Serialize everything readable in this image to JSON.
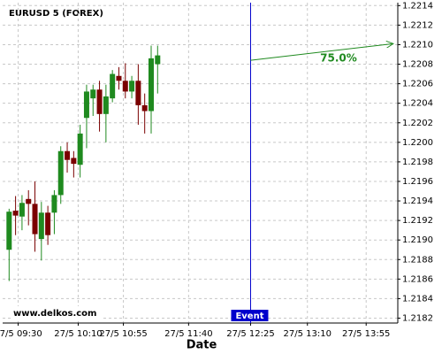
{
  "chart_data": {
    "type": "candlestick",
    "title": "EURUSD 5 (FOREX)",
    "x_label": "Date",
    "watermark": "www.delkos.com",
    "up_color": "#1f8a1f",
    "down_color": "#7a0000",
    "series": [
      {
        "name": "EURUSD",
        "open": [
          1.2189,
          1.2193,
          1.21924,
          1.21942,
          1.21937,
          1.21901,
          1.21928,
          1.21928,
          1.21946,
          1.21991,
          1.21984,
          1.21977,
          1.22025,
          1.22045,
          1.22054,
          1.22029,
          1.22045,
          1.22068,
          1.22063,
          1.22052,
          1.22063,
          1.22038,
          1.22032,
          1.2208
        ],
        "high": [
          1.21932,
          1.21945,
          1.21946,
          1.21951,
          1.2196,
          1.21939,
          1.21935,
          1.21951,
          1.21996,
          1.22,
          1.21991,
          1.22018,
          1.22059,
          1.22059,
          1.22063,
          1.22059,
          1.22074,
          1.22077,
          1.22081,
          1.22068,
          1.2208,
          1.2205,
          1.22099,
          1.22099
        ],
        "low": [
          1.21858,
          1.21905,
          1.2191,
          1.21915,
          1.21888,
          1.21879,
          1.21895,
          1.21906,
          1.21937,
          1.21969,
          1.21964,
          1.21964,
          1.21994,
          1.22027,
          1.22011,
          1.22,
          1.22041,
          1.22054,
          1.22045,
          1.22045,
          1.22018,
          1.22009,
          1.22009,
          1.2205
        ],
        "close": [
          1.21929,
          1.21925,
          1.21938,
          1.21937,
          1.21906,
          1.21928,
          1.21905,
          1.21946,
          1.21991,
          1.21982,
          1.21978,
          1.22009,
          1.22052,
          1.22054,
          1.22029,
          1.22047,
          1.2207,
          1.22063,
          1.22052,
          1.22063,
          1.22038,
          1.22032,
          1.22086,
          1.22089
        ]
      }
    ],
    "xlim": [
      -1,
      60.2
    ],
    "xticks": [
      {
        "value": 1.4,
        "label": "27/5 09:30"
      },
      {
        "value": 10.7,
        "label": "27/5 10:10"
      },
      {
        "value": 17.7,
        "label": "27/5 10:55"
      },
      {
        "value": 27.8,
        "label": "27/5 11:40"
      },
      {
        "value": 37.4,
        "label": "27/5 12:25"
      },
      {
        "value": 46.2,
        "label": "27/5 13:10"
      },
      {
        "value": 55.3,
        "label": "27/5 13:55"
      }
    ],
    "ylim": [
      1.21815,
      1.22143
    ],
    "yticks": [
      1.2182,
      1.2184,
      1.2186,
      1.2188,
      {
        "value": 1.219,
        "label": "1.2190"
      },
      1.2192,
      1.2194,
      1.2196,
      1.2198,
      {
        "value": 1.22,
        "label": "1.2200"
      },
      1.2202,
      1.2204,
      1.2206,
      1.2208,
      {
        "value": 1.221,
        "label": "1.2210"
      },
      1.2212,
      1.2214
    ],
    "grid": true,
    "event": {
      "label": "Event",
      "x": 37.4,
      "color": "#0000cc"
    },
    "forecast": {
      "label": "75.0%",
      "x0": 37.4,
      "y0": 1.22084,
      "x1": 59.5,
      "y1": 1.22101,
      "color": "#1f8a1f"
    }
  }
}
